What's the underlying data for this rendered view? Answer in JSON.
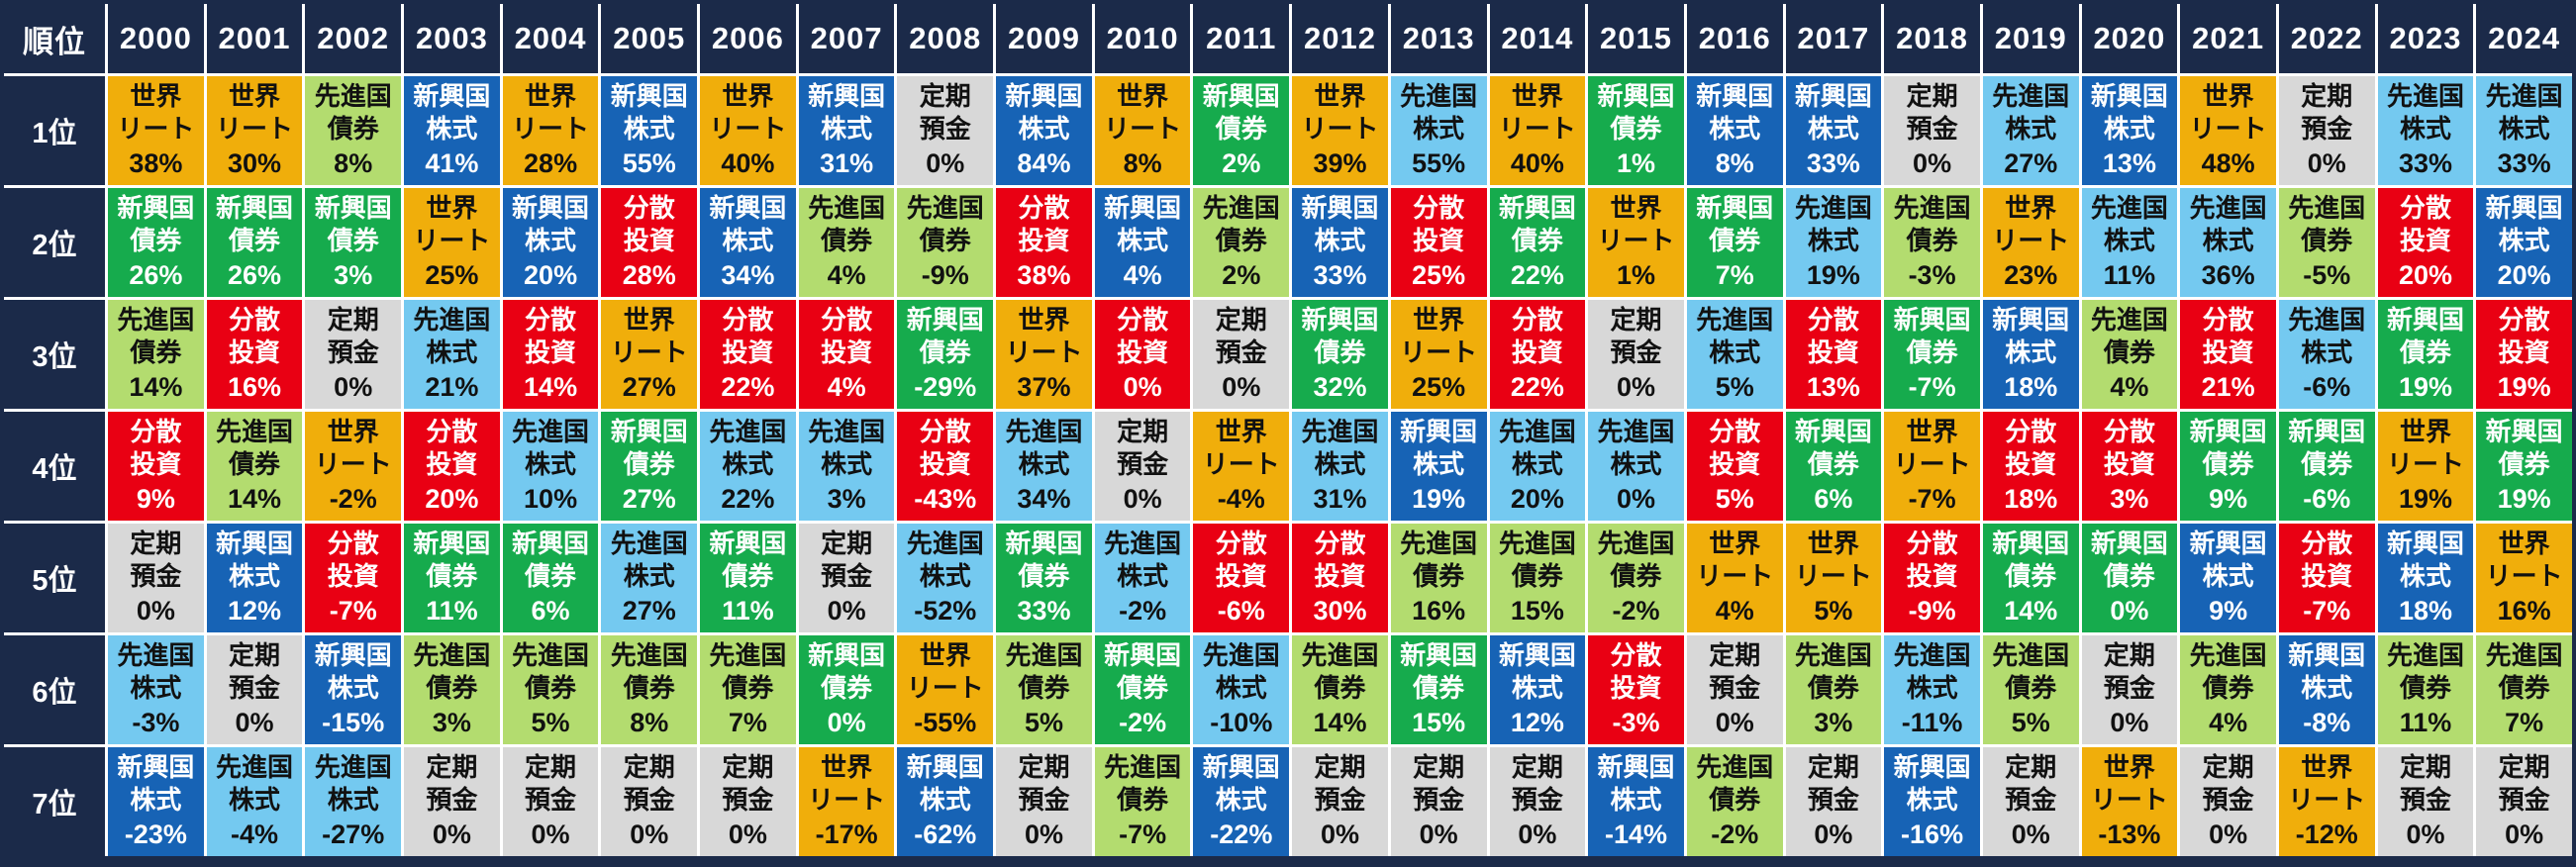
{
  "table": {
    "rank_header": "順位"
  },
  "colors": {
    "frame_navy": "#1B2A49",
    "grid_line": "#FFFFFF",
    "world_reit": "#F0AE0B",
    "developed_bonds": "#B3DC6F",
    "emerging_bonds": "#16AB4D",
    "emerging_stocks": "#1763B5",
    "developed_stocks": "#74C9F0",
    "diversified": "#E90013",
    "deposit": "#D8D8D8"
  },
  "assets": {
    "世界リート": {
      "lines": [
        "世界",
        "リート"
      ],
      "bg": "#F0AE0B",
      "fg": "#111111"
    },
    "先進国債券": {
      "lines": [
        "先進国",
        "債券"
      ],
      "bg": "#B3DC6F",
      "fg": "#111111"
    },
    "新興国債券": {
      "lines": [
        "新興国",
        "債券"
      ],
      "bg": "#16AB4D",
      "fg": "#FFFFFF"
    },
    "新興国株式": {
      "lines": [
        "新興国",
        "株式"
      ],
      "bg": "#1763B5",
      "fg": "#FFFFFF"
    },
    "先進国株式": {
      "lines": [
        "先進国",
        "株式"
      ],
      "bg": "#74C9F0",
      "fg": "#111111"
    },
    "分散投資": {
      "lines": [
        "分散",
        "投資"
      ],
      "bg": "#E90013",
      "fg": "#FFFFFF"
    },
    "定期預金": {
      "lines": [
        "定期",
        "預金"
      ],
      "bg": "#D8D8D8",
      "fg": "#111111"
    }
  },
  "chart_data": {
    "type": "table",
    "years": [
      "2000",
      "2001",
      "2002",
      "2003",
      "2004",
      "2005",
      "2006",
      "2007",
      "2008",
      "2009",
      "2010",
      "2011",
      "2012",
      "2013",
      "2014",
      "2015",
      "2016",
      "2017",
      "2018",
      "2019",
      "2020",
      "2021",
      "2022",
      "2023",
      "2024"
    ],
    "rank_labels": [
      "1位",
      "2位",
      "3位",
      "4位",
      "5位",
      "6位",
      "7位"
    ],
    "columns": [
      {
        "year": "2000",
        "ranking": [
          {
            "asset": "世界リート",
            "value": "38%"
          },
          {
            "asset": "新興国債券",
            "value": "26%"
          },
          {
            "asset": "先進国債券",
            "value": "14%"
          },
          {
            "asset": "分散投資",
            "value": "9%"
          },
          {
            "asset": "定期預金",
            "value": "0%"
          },
          {
            "asset": "先進国株式",
            "value": "-3%"
          },
          {
            "asset": "新興国株式",
            "value": "-23%"
          }
        ]
      },
      {
        "year": "2001",
        "ranking": [
          {
            "asset": "世界リート",
            "value": "30%"
          },
          {
            "asset": "新興国債券",
            "value": "26%"
          },
          {
            "asset": "分散投資",
            "value": "16%"
          },
          {
            "asset": "先進国債券",
            "value": "14%"
          },
          {
            "asset": "新興国株式",
            "value": "12%"
          },
          {
            "asset": "定期預金",
            "value": "0%"
          },
          {
            "asset": "先進国株式",
            "value": "-4%"
          }
        ]
      },
      {
        "year": "2002",
        "ranking": [
          {
            "asset": "先進国債券",
            "value": "8%"
          },
          {
            "asset": "新興国債券",
            "value": "3%"
          },
          {
            "asset": "定期預金",
            "value": "0%"
          },
          {
            "asset": "世界リート",
            "value": "-2%"
          },
          {
            "asset": "分散投資",
            "value": "-7%"
          },
          {
            "asset": "新興国株式",
            "value": "-15%"
          },
          {
            "asset": "先進国株式",
            "value": "-27%"
          }
        ]
      },
      {
        "year": "2003",
        "ranking": [
          {
            "asset": "新興国株式",
            "value": "41%"
          },
          {
            "asset": "世界リート",
            "value": "25%"
          },
          {
            "asset": "先進国株式",
            "value": "21%"
          },
          {
            "asset": "分散投資",
            "value": "20%"
          },
          {
            "asset": "新興国債券",
            "value": "11%"
          },
          {
            "asset": "先進国債券",
            "value": "3%"
          },
          {
            "asset": "定期預金",
            "value": "0%"
          }
        ]
      },
      {
        "year": "2004",
        "ranking": [
          {
            "asset": "世界リート",
            "value": "28%"
          },
          {
            "asset": "新興国株式",
            "value": "20%"
          },
          {
            "asset": "分散投資",
            "value": "14%"
          },
          {
            "asset": "先進国株式",
            "value": "10%"
          },
          {
            "asset": "新興国債券",
            "value": "6%"
          },
          {
            "asset": "先進国債券",
            "value": "5%"
          },
          {
            "asset": "定期預金",
            "value": "0%"
          }
        ]
      },
      {
        "year": "2005",
        "ranking": [
          {
            "asset": "新興国株式",
            "value": "55%"
          },
          {
            "asset": "分散投資",
            "value": "28%"
          },
          {
            "asset": "世界リート",
            "value": "27%"
          },
          {
            "asset": "新興国債券",
            "value": "27%"
          },
          {
            "asset": "先進国株式",
            "value": "27%"
          },
          {
            "asset": "先進国債券",
            "value": "8%"
          },
          {
            "asset": "定期預金",
            "value": "0%"
          }
        ]
      },
      {
        "year": "2006",
        "ranking": [
          {
            "asset": "世界リート",
            "value": "40%"
          },
          {
            "asset": "新興国株式",
            "value": "34%"
          },
          {
            "asset": "分散投資",
            "value": "22%"
          },
          {
            "asset": "先進国株式",
            "value": "22%"
          },
          {
            "asset": "新興国債券",
            "value": "11%"
          },
          {
            "asset": "先進国債券",
            "value": "7%"
          },
          {
            "asset": "定期預金",
            "value": "0%"
          }
        ]
      },
      {
        "year": "2007",
        "ranking": [
          {
            "asset": "新興国株式",
            "value": "31%"
          },
          {
            "asset": "先進国債券",
            "value": "4%"
          },
          {
            "asset": "分散投資",
            "value": "4%"
          },
          {
            "asset": "先進国株式",
            "value": "3%"
          },
          {
            "asset": "定期預金",
            "value": "0%"
          },
          {
            "asset": "新興国債券",
            "value": "0%"
          },
          {
            "asset": "世界リート",
            "value": "-17%"
          }
        ]
      },
      {
        "year": "2008",
        "ranking": [
          {
            "asset": "定期預金",
            "value": "0%"
          },
          {
            "asset": "先進国債券",
            "value": "-9%"
          },
          {
            "asset": "新興国債券",
            "value": "-29%"
          },
          {
            "asset": "分散投資",
            "value": "-43%"
          },
          {
            "asset": "先進国株式",
            "value": "-52%"
          },
          {
            "asset": "世界リート",
            "value": "-55%"
          },
          {
            "asset": "新興国株式",
            "value": "-62%"
          }
        ]
      },
      {
        "year": "2009",
        "ranking": [
          {
            "asset": "新興国株式",
            "value": "84%"
          },
          {
            "asset": "分散投資",
            "value": "38%"
          },
          {
            "asset": "世界リート",
            "value": "37%"
          },
          {
            "asset": "先進国株式",
            "value": "34%"
          },
          {
            "asset": "新興国債券",
            "value": "33%"
          },
          {
            "asset": "先進国債券",
            "value": "5%"
          },
          {
            "asset": "定期預金",
            "value": "0%"
          }
        ]
      },
      {
        "year": "2010",
        "ranking": [
          {
            "asset": "世界リート",
            "value": "8%"
          },
          {
            "asset": "新興国株式",
            "value": "4%"
          },
          {
            "asset": "分散投資",
            "value": "0%"
          },
          {
            "asset": "定期預金",
            "value": "0%"
          },
          {
            "asset": "先進国株式",
            "value": "-2%"
          },
          {
            "asset": "新興国債券",
            "value": "-2%"
          },
          {
            "asset": "先進国債券",
            "value": "-7%"
          }
        ]
      },
      {
        "year": "2011",
        "ranking": [
          {
            "asset": "新興国債券",
            "value": "2%"
          },
          {
            "asset": "先進国債券",
            "value": "2%"
          },
          {
            "asset": "定期預金",
            "value": "0%"
          },
          {
            "asset": "世界リート",
            "value": "-4%"
          },
          {
            "asset": "分散投資",
            "value": "-6%"
          },
          {
            "asset": "先進国株式",
            "value": "-10%"
          },
          {
            "asset": "新興国株式",
            "value": "-22%"
          }
        ]
      },
      {
        "year": "2012",
        "ranking": [
          {
            "asset": "世界リート",
            "value": "39%"
          },
          {
            "asset": "新興国株式",
            "value": "33%"
          },
          {
            "asset": "新興国債券",
            "value": "32%"
          },
          {
            "asset": "先進国株式",
            "value": "31%"
          },
          {
            "asset": "分散投資",
            "value": "30%"
          },
          {
            "asset": "先進国債券",
            "value": "14%"
          },
          {
            "asset": "定期預金",
            "value": "0%"
          }
        ]
      },
      {
        "year": "2013",
        "ranking": [
          {
            "asset": "先進国株式",
            "value": "55%"
          },
          {
            "asset": "分散投資",
            "value": "25%"
          },
          {
            "asset": "世界リート",
            "value": "25%"
          },
          {
            "asset": "新興国株式",
            "value": "19%"
          },
          {
            "asset": "先進国債券",
            "value": "16%"
          },
          {
            "asset": "新興国債券",
            "value": "15%"
          },
          {
            "asset": "定期預金",
            "value": "0%"
          }
        ]
      },
      {
        "year": "2014",
        "ranking": [
          {
            "asset": "世界リート",
            "value": "40%"
          },
          {
            "asset": "新興国債券",
            "value": "22%"
          },
          {
            "asset": "分散投資",
            "value": "22%"
          },
          {
            "asset": "先進国株式",
            "value": "20%"
          },
          {
            "asset": "先進国債券",
            "value": "15%"
          },
          {
            "asset": "新興国株式",
            "value": "12%"
          },
          {
            "asset": "定期預金",
            "value": "0%"
          }
        ]
      },
      {
        "year": "2015",
        "ranking": [
          {
            "asset": "新興国債券",
            "value": "1%"
          },
          {
            "asset": "世界リート",
            "value": "1%"
          },
          {
            "asset": "定期預金",
            "value": "0%"
          },
          {
            "asset": "先進国株式",
            "value": "0%"
          },
          {
            "asset": "先進国債券",
            "value": "-2%"
          },
          {
            "asset": "分散投資",
            "value": "-3%"
          },
          {
            "asset": "新興国株式",
            "value": "-14%"
          }
        ]
      },
      {
        "year": "2016",
        "ranking": [
          {
            "asset": "新興国株式",
            "value": "8%"
          },
          {
            "asset": "新興国債券",
            "value": "7%"
          },
          {
            "asset": "先進国株式",
            "value": "5%"
          },
          {
            "asset": "分散投資",
            "value": "5%"
          },
          {
            "asset": "世界リート",
            "value": "4%"
          },
          {
            "asset": "定期預金",
            "value": "0%"
          },
          {
            "asset": "先進国債券",
            "value": "-2%"
          }
        ]
      },
      {
        "year": "2017",
        "ranking": [
          {
            "asset": "新興国株式",
            "value": "33%"
          },
          {
            "asset": "先進国株式",
            "value": "19%"
          },
          {
            "asset": "分散投資",
            "value": "13%"
          },
          {
            "asset": "新興国債券",
            "value": "6%"
          },
          {
            "asset": "世界リート",
            "value": "5%"
          },
          {
            "asset": "先進国債券",
            "value": "3%"
          },
          {
            "asset": "定期預金",
            "value": "0%"
          }
        ]
      },
      {
        "year": "2018",
        "ranking": [
          {
            "asset": "定期預金",
            "value": "0%"
          },
          {
            "asset": "先進国債券",
            "value": "-3%"
          },
          {
            "asset": "新興国債券",
            "value": "-7%"
          },
          {
            "asset": "世界リート",
            "value": "-7%"
          },
          {
            "asset": "分散投資",
            "value": "-9%"
          },
          {
            "asset": "先進国株式",
            "value": "-11%"
          },
          {
            "asset": "新興国株式",
            "value": "-16%"
          }
        ]
      },
      {
        "year": "2019",
        "ranking": [
          {
            "asset": "先進国株式",
            "value": "27%"
          },
          {
            "asset": "世界リート",
            "value": "23%"
          },
          {
            "asset": "新興国株式",
            "value": "18%"
          },
          {
            "asset": "分散投資",
            "value": "18%"
          },
          {
            "asset": "新興国債券",
            "value": "14%"
          },
          {
            "asset": "先進国債券",
            "value": "5%"
          },
          {
            "asset": "定期預金",
            "value": "0%"
          }
        ]
      },
      {
        "year": "2020",
        "ranking": [
          {
            "asset": "新興国株式",
            "value": "13%"
          },
          {
            "asset": "先進国株式",
            "value": "11%"
          },
          {
            "asset": "先進国債券",
            "value": "4%"
          },
          {
            "asset": "分散投資",
            "value": "3%"
          },
          {
            "asset": "新興国債券",
            "value": "0%"
          },
          {
            "asset": "定期預金",
            "value": "0%"
          },
          {
            "asset": "世界リート",
            "value": "-13%"
          }
        ]
      },
      {
        "year": "2021",
        "ranking": [
          {
            "asset": "世界リート",
            "value": "48%"
          },
          {
            "asset": "先進国株式",
            "value": "36%"
          },
          {
            "asset": "分散投資",
            "value": "21%"
          },
          {
            "asset": "新興国債券",
            "value": "9%"
          },
          {
            "asset": "新興国株式",
            "value": "9%"
          },
          {
            "asset": "先進国債券",
            "value": "4%"
          },
          {
            "asset": "定期預金",
            "value": "0%"
          }
        ]
      },
      {
        "year": "2022",
        "ranking": [
          {
            "asset": "定期預金",
            "value": "0%"
          },
          {
            "asset": "先進国債券",
            "value": "-5%"
          },
          {
            "asset": "先進国株式",
            "value": "-6%"
          },
          {
            "asset": "新興国債券",
            "value": "-6%"
          },
          {
            "asset": "分散投資",
            "value": "-7%"
          },
          {
            "asset": "新興国株式",
            "value": "-8%"
          },
          {
            "asset": "世界リート",
            "value": "-12%"
          }
        ]
      },
      {
        "year": "2023",
        "ranking": [
          {
            "asset": "先進国株式",
            "value": "33%"
          },
          {
            "asset": "分散投資",
            "value": "20%"
          },
          {
            "asset": "新興国債券",
            "value": "19%"
          },
          {
            "asset": "世界リート",
            "value": "19%"
          },
          {
            "asset": "新興国株式",
            "value": "18%"
          },
          {
            "asset": "先進国債券",
            "value": "11%"
          },
          {
            "asset": "定期預金",
            "value": "0%"
          }
        ]
      },
      {
        "year": "2024",
        "ranking": [
          {
            "asset": "先進国株式",
            "value": "33%"
          },
          {
            "asset": "新興国株式",
            "value": "20%"
          },
          {
            "asset": "分散投資",
            "value": "19%"
          },
          {
            "asset": "新興国債券",
            "value": "19%"
          },
          {
            "asset": "世界リート",
            "value": "16%"
          },
          {
            "asset": "先進国債券",
            "value": "7%"
          },
          {
            "asset": "定期預金",
            "value": "0%"
          }
        ]
      }
    ]
  }
}
